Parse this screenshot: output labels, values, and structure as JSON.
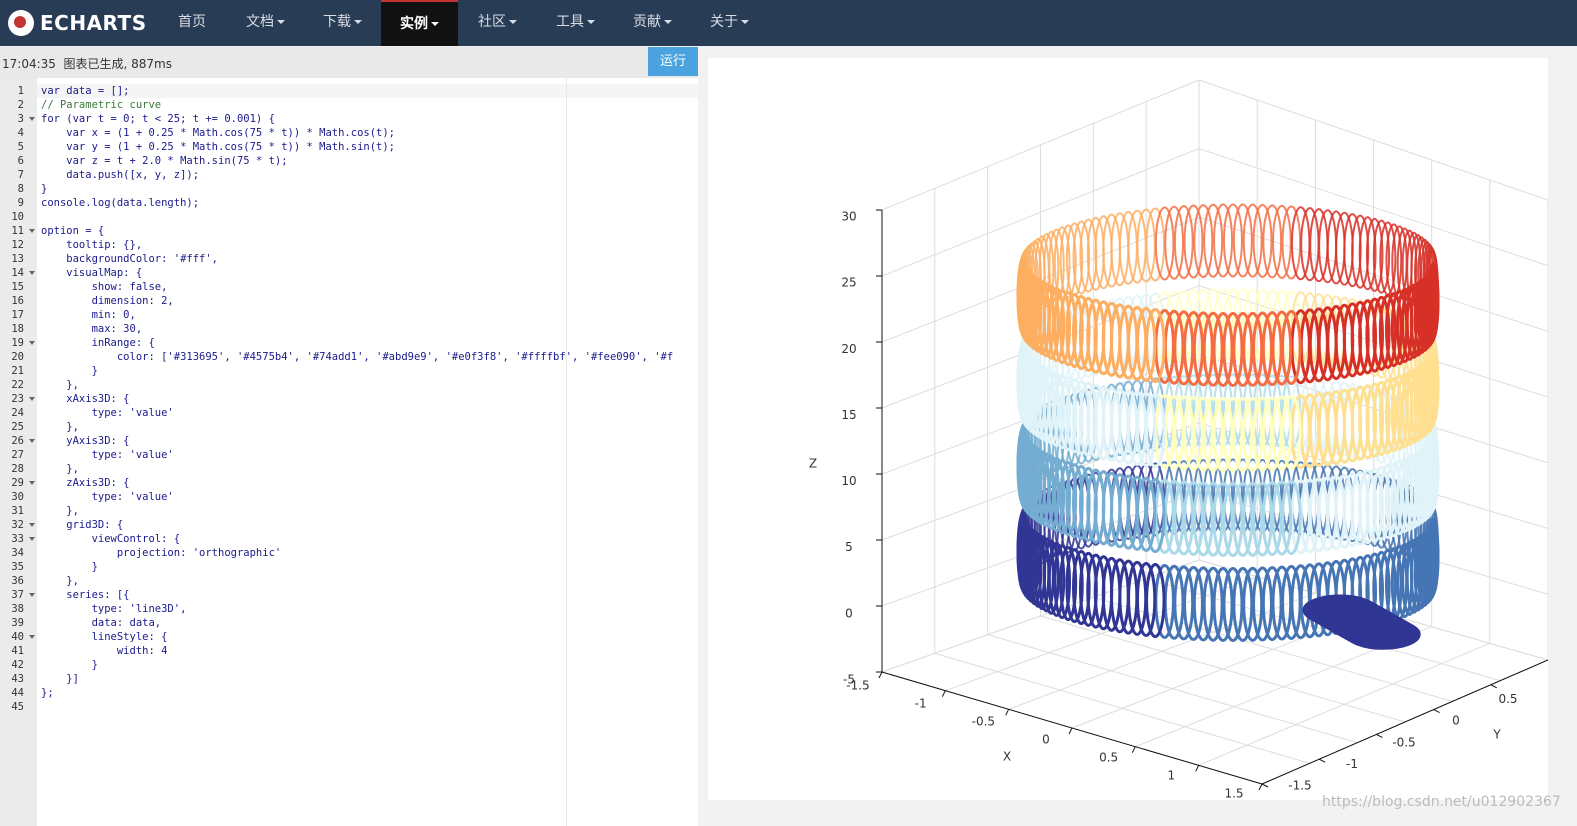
{
  "nav": {
    "logo": "ECHARTS",
    "items": [
      "首页",
      "文档",
      "下载",
      "实例",
      "社区",
      "工具",
      "贡献",
      "关于"
    ]
  },
  "toolbar": {
    "status": "17:04:35  图表已生成, 887ms",
    "run": "运行"
  },
  "editor": {
    "line_numbers": [
      1,
      2,
      3,
      4,
      5,
      6,
      7,
      8,
      9,
      10,
      11,
      12,
      13,
      14,
      15,
      16,
      17,
      18,
      19,
      20,
      21,
      22,
      23,
      24,
      25,
      26,
      27,
      28,
      29,
      30,
      31,
      32,
      33,
      34,
      35,
      36,
      37,
      38,
      39,
      40,
      41,
      42,
      43,
      44,
      45
    ],
    "lines": [
      "var data = [];",
      "// Parametric curve",
      "for (var t = 0; t < 25; t += 0.001) {",
      "    var x = (1 + 0.25 * Math.cos(75 * t)) * Math.cos(t);",
      "    var y = (1 + 0.25 * Math.cos(75 * t)) * Math.sin(t);",
      "    var z = t + 2.0 * Math.sin(75 * t);",
      "    data.push([x, y, z]);",
      "}",
      "console.log(data.length);",
      null,
      "option = {",
      "    tooltip: {},",
      "    backgroundColor: '#fff',",
      "    visualMap: {",
      "        show: false,",
      "        dimension: 2,",
      "        min: 0,",
      "        max: 30,",
      "        inRange: {",
      "            color: ['#313695', '#4575b4', '#74add1', '#abd9e9', '#e0f3f8', '#ffffbf', '#fee090', '#f",
      "        }",
      "    },",
      "    xAxis3D: {",
      "        type: 'value'",
      "    },",
      "    yAxis3D: {",
      "        type: 'value'",
      "    },",
      "    zAxis3D: {",
      "        type: 'value'",
      "    },",
      "    grid3D: {",
      "        viewControl: {",
      "            projection: 'orthographic'",
      "        }",
      "    },",
      "    series: [{",
      "        type: 'line3D',",
      "        data: data,",
      "        lineStyle: {",
      "            width: 4",
      "        }",
      "    }]",
      "};",
      null
    ]
  },
  "chart": {
    "x_label": "X",
    "y_label": "Y",
    "z_label": "Z",
    "xlim": [
      -1.5,
      1.5
    ],
    "xticks": [
      -1.5,
      -1,
      -0.5,
      0,
      0.5,
      1,
      1.5
    ],
    "ylim": [
      -1.5,
      1
    ],
    "yticks": [
      -1.5,
      -1,
      -0.5,
      0,
      0.5
    ],
    "zlim": [
      -5,
      30
    ],
    "zticks": [
      -5,
      0,
      5,
      10,
      15,
      20,
      25,
      30
    ]
  },
  "watermark": "https://blog.csdn.net/u012902367"
}
